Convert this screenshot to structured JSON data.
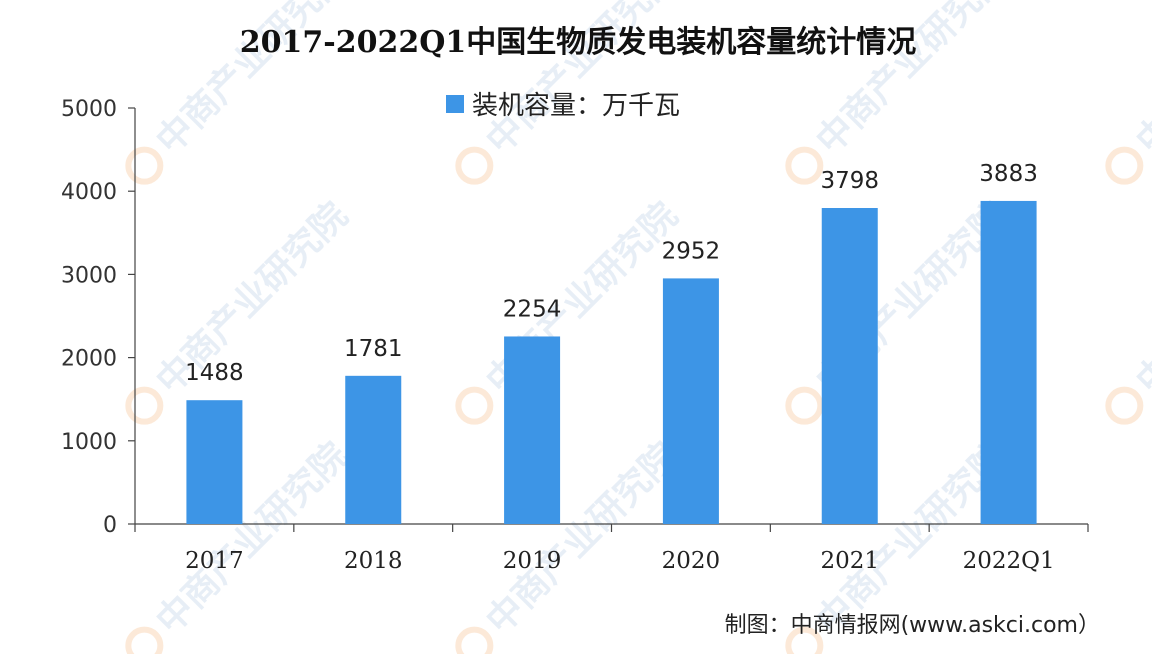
{
  "chart_data": {
    "type": "bar",
    "title": "2017-2022Q1中国生物质发电装机容量统计情况",
    "xlabel": "",
    "ylabel": "",
    "categories": [
      "2017",
      "2018",
      "2019",
      "2020",
      "2021",
      "2022Q1"
    ],
    "series": [
      {
        "name": "装机容量：万千瓦",
        "values": [
          1488,
          1781,
          2254,
          2952,
          3798,
          3883
        ]
      }
    ],
    "data_labels": [
      "1488",
      "1781",
      "2254",
      "2952",
      "3798",
      "3883"
    ],
    "ylim": [
      0,
      5000
    ],
    "yticks": [
      0,
      1000,
      2000,
      3000,
      4000,
      5000
    ],
    "grid": false,
    "legend_position": "top-center",
    "bar_color": "#3d95e6"
  },
  "source_text": "制图：中商情报网(www.askci.com）",
  "watermark": {
    "text": "中商产业研究院",
    "icon": "askci-logo-icon"
  }
}
